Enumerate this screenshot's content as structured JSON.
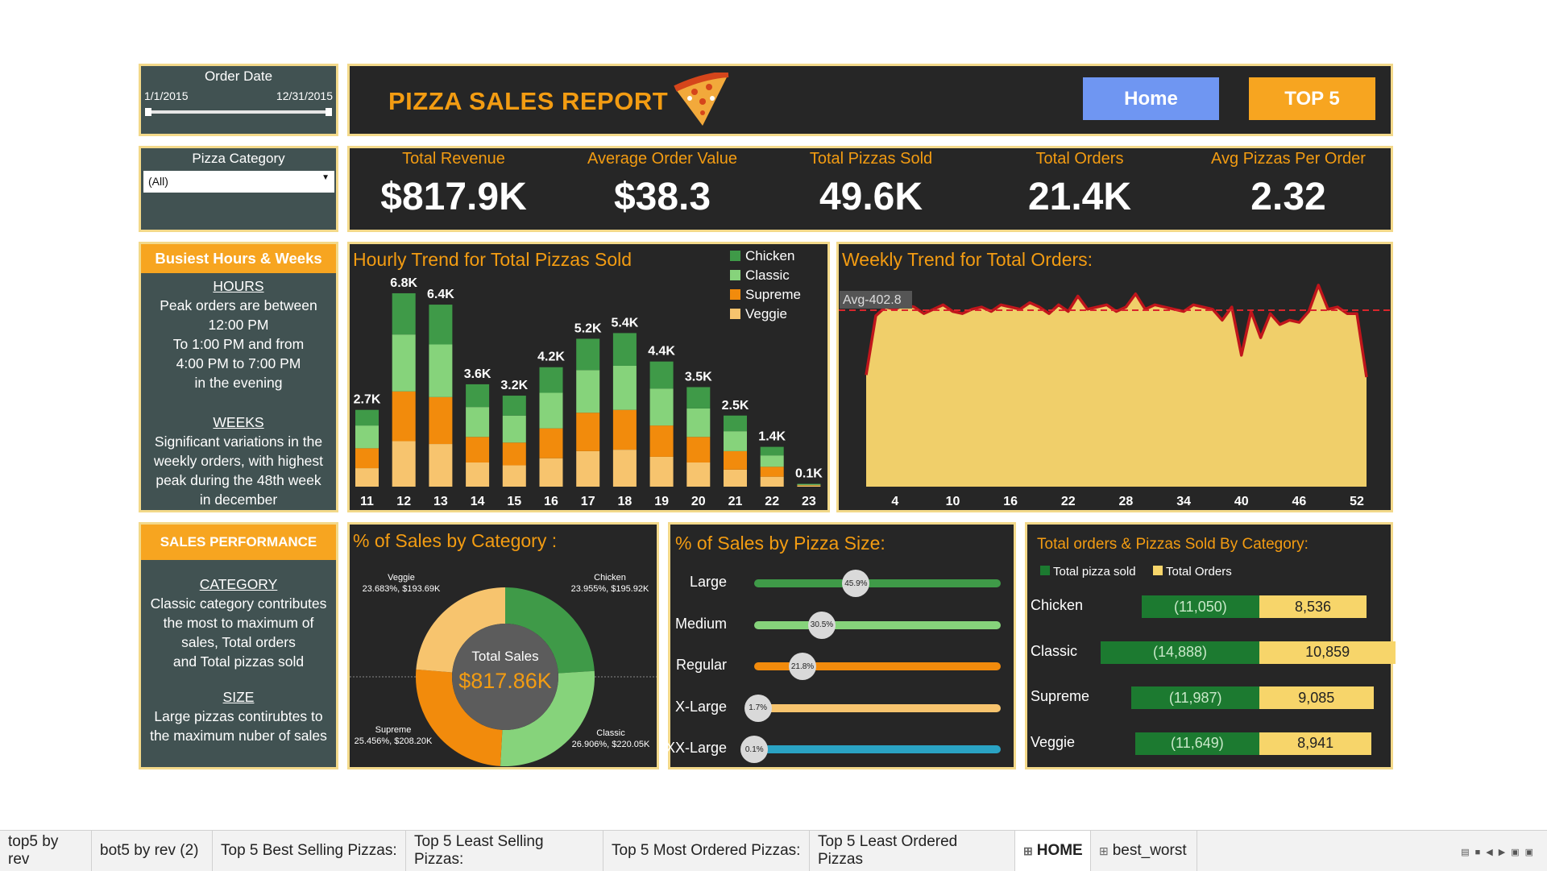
{
  "filters": {
    "order_date": {
      "label": "Order Date",
      "start": "1/1/2015",
      "end": "12/31/2015"
    },
    "category": {
      "label": "Pizza Category",
      "value": "(All)"
    }
  },
  "header": {
    "title": "PIZZA SALES REPORT",
    "home_label": "Home",
    "top5_label": "TOP 5"
  },
  "kpis": [
    {
      "label": "Total Revenue",
      "value": "$817.9K"
    },
    {
      "label": "Average Order Value",
      "value": "$38.3"
    },
    {
      "label": "Total Pizzas Sold",
      "value": "49.6K"
    },
    {
      "label": "Total Orders",
      "value": "21.4K"
    },
    {
      "label": "Avg Pizzas Per Order",
      "value": "2.32"
    }
  ],
  "busiest": {
    "title": "Busiest Hours & Weeks",
    "hours_heading": "HOURS",
    "hours_lines": [
      "Peak orders are between",
      "12:00 PM",
      "To 1:00 PM and from",
      "4:00 PM to 7:00 PM",
      "in the evening"
    ],
    "weeks_heading": "WEEKS",
    "weeks_lines": [
      "Significant variations in the",
      "weekly orders, with highest",
      "peak during the 48th week",
      "in december"
    ]
  },
  "performance": {
    "title": "SALES PERFORMANCE",
    "category_heading": "CATEGORY",
    "category_lines": [
      "Classic category contributes",
      "the most to maximum of",
      "sales, Total orders",
      "and Total pizzas sold"
    ],
    "size_heading": "SIZE",
    "size_lines": [
      "Large pizzas contirubtes to",
      "the maximum nuber of sales"
    ]
  },
  "colors": {
    "chicken": "#3f9a48",
    "classic": "#86d37b",
    "supreme": "#f28b0c",
    "veggie": "#f7c46e",
    "accent": "#f39c12",
    "area": "#f0cf6a",
    "line": "#c0151b"
  },
  "chart_data": [
    {
      "type": "bar",
      "title": "Hourly Trend for Total Pizzas Sold",
      "categories": [
        "11",
        "12",
        "13",
        "14",
        "15",
        "16",
        "17",
        "18",
        "19",
        "20",
        "21",
        "22",
        "23"
      ],
      "totals_labels": [
        "2.7K",
        "6.8K",
        "6.4K",
        "3.6K",
        "3.2K",
        "4.2K",
        "5.2K",
        "5.4K",
        "4.4K",
        "3.5K",
        "2.5K",
        "1.4K",
        "0.1K"
      ],
      "totals": [
        2.7,
        6.8,
        6.4,
        3.6,
        3.2,
        4.2,
        5.2,
        5.4,
        4.4,
        3.5,
        2.5,
        1.4,
        0.1
      ],
      "series": [
        {
          "name": "Veggie",
          "values": [
            0.65,
            1.6,
            1.5,
            0.85,
            0.75,
            1.0,
            1.25,
            1.3,
            1.05,
            0.85,
            0.6,
            0.35,
            0.03
          ]
        },
        {
          "name": "Supreme",
          "values": [
            0.7,
            1.75,
            1.65,
            0.9,
            0.8,
            1.05,
            1.35,
            1.4,
            1.1,
            0.9,
            0.65,
            0.35,
            0.02
          ]
        },
        {
          "name": "Classic",
          "values": [
            0.8,
            2.0,
            1.85,
            1.05,
            0.95,
            1.25,
            1.5,
            1.55,
            1.3,
            1.0,
            0.7,
            0.4,
            0.03
          ]
        },
        {
          "name": "Chicken",
          "values": [
            0.55,
            1.45,
            1.4,
            0.8,
            0.7,
            0.9,
            1.1,
            1.15,
            0.95,
            0.75,
            0.55,
            0.3,
            0.02
          ]
        }
      ],
      "legend": [
        "Chicken",
        "Classic",
        "Supreme",
        "Veggie"
      ],
      "legend_position": "top-right"
    },
    {
      "type": "area",
      "title": "Weekly Trend for Total Orders:",
      "x_ticks": [
        "4",
        "10",
        "16",
        "22",
        "28",
        "34",
        "40",
        "46",
        "52"
      ],
      "avg_label": "Avg-402.8",
      "avg": 402.8,
      "x": [
        1,
        2,
        3,
        4,
        5,
        6,
        7,
        8,
        9,
        10,
        11,
        12,
        13,
        14,
        15,
        16,
        17,
        18,
        19,
        20,
        21,
        22,
        23,
        24,
        25,
        26,
        27,
        28,
        29,
        30,
        31,
        32,
        33,
        34,
        35,
        36,
        37,
        38,
        39,
        40,
        41,
        42,
        43,
        44,
        45,
        46,
        47,
        48,
        49,
        50,
        51,
        52,
        53
      ],
      "values": [
        255,
        390,
        410,
        405,
        415,
        410,
        395,
        405,
        415,
        400,
        395,
        405,
        410,
        400,
        415,
        410,
        405,
        420,
        410,
        395,
        415,
        400,
        435,
        405,
        410,
        415,
        400,
        410,
        440,
        405,
        415,
        410,
        405,
        400,
        415,
        410,
        405,
        380,
        410,
        300,
        400,
        340,
        395,
        370,
        380,
        375,
        400,
        460,
        405,
        410,
        395,
        395,
        250
      ],
      "ylim": [
        0,
        480
      ]
    },
    {
      "type": "pie",
      "title": "% of Sales by Category :",
      "center_label": "Total Sales",
      "center_value": "$817.86K",
      "slices": [
        {
          "name": "Chicken",
          "percent": 23.955,
          "label": "23.955%, $195.92K"
        },
        {
          "name": "Classic",
          "percent": 26.906,
          "label": "26.906%, $220.05K"
        },
        {
          "name": "Supreme",
          "percent": 25.456,
          "label": "25.456%, $208.20K"
        },
        {
          "name": "Veggie",
          "percent": 23.683,
          "label": "23.683%, $193.69K"
        }
      ]
    },
    {
      "type": "bar",
      "title": "% of Sales by Pizza Size:",
      "categories": [
        "Large",
        "Medium",
        "Regular",
        "X-Large",
        "XX-Large"
      ],
      "values": [
        45.9,
        30.5,
        21.8,
        1.7,
        0.1
      ],
      "labels": [
        "45.9%",
        "30.5%",
        "21.8%",
        "1.7%",
        "0.1%"
      ],
      "bar_colors": [
        "#3f9a48",
        "#86d37b",
        "#f28b0c",
        "#f7c46e",
        "#2aa3c4"
      ],
      "xlim": [
        0,
        100
      ]
    },
    {
      "type": "bar",
      "title": "Total orders & Pizzas Sold By Category:",
      "legend": [
        "Total pizza sold",
        "Total Orders"
      ],
      "categories": [
        "Chicken",
        "Classic",
        "Supreme",
        "Veggie"
      ],
      "series": [
        {
          "name": "Total pizza sold",
          "values": [
            11050,
            14888,
            11987,
            11649
          ],
          "labels": [
            "(11,050)",
            "(14,888)",
            "(11,987)",
            "(11,649)"
          ]
        },
        {
          "name": "Total Orders",
          "values": [
            8536,
            10859,
            9085,
            8941
          ],
          "labels": [
            "8,536",
            "10,859",
            "9,085",
            "8,941"
          ]
        }
      ]
    }
  ],
  "tabs": [
    {
      "label": "top5 by rev"
    },
    {
      "label": "bot5 by rev (2)"
    },
    {
      "label": "Top 5 Best Selling Pizzas:"
    },
    {
      "label": "Top 5 Least Selling Pizzas:"
    },
    {
      "label": "Top 5 Most Ordered Pizzas:"
    },
    {
      "label": "Top 5 Least Ordered Pizzas"
    },
    {
      "label": "HOME"
    },
    {
      "label": "best_worst"
    }
  ]
}
